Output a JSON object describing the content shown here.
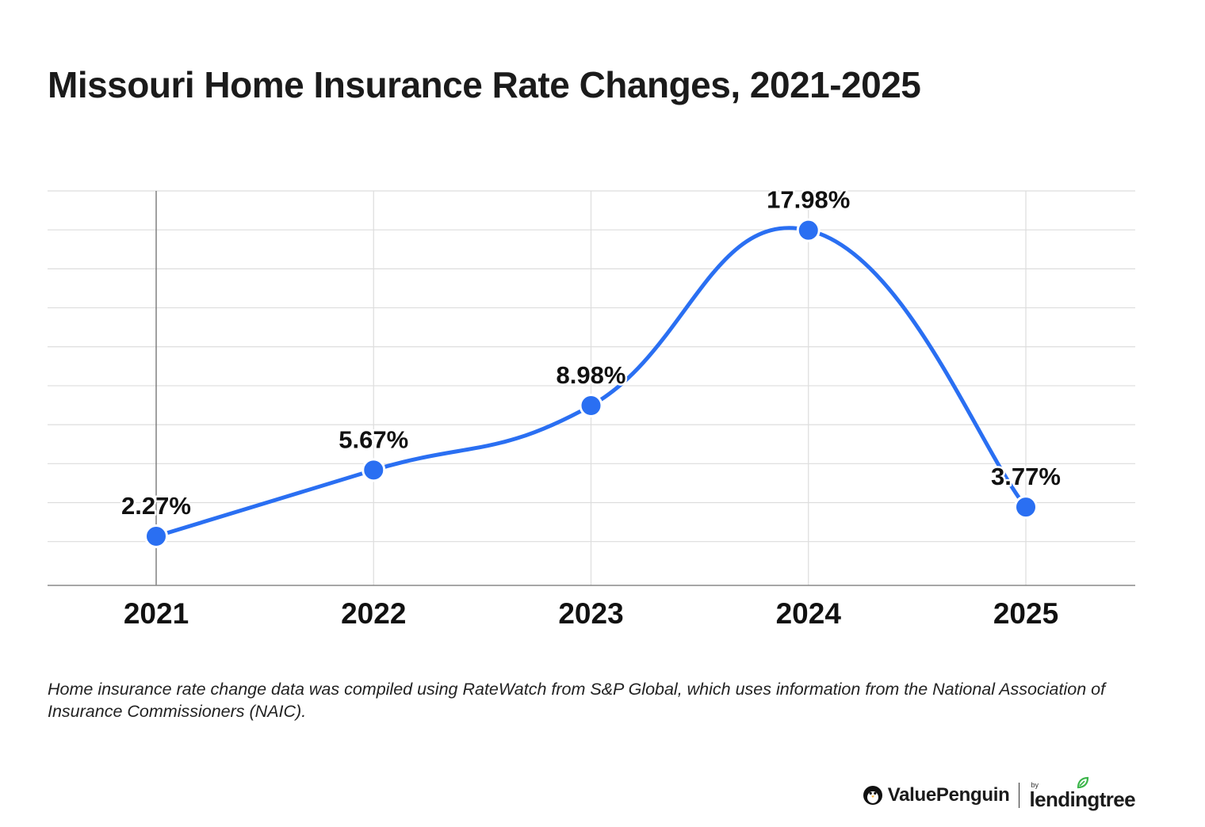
{
  "title": "Missouri Home Insurance Rate Changes, 2021-2025",
  "footnote": "Home insurance rate change data was compiled using RateWatch from S&P Global, which uses information from the National Association of Insurance Commissioners (NAIC).",
  "brand": {
    "valuepenguin": "ValuePenguin",
    "by": "by",
    "lendingtree": "lendingtree"
  },
  "colors": {
    "line": "#2a6ff2",
    "point": "#2a6ff2",
    "grid": "#dddddd",
    "axis": "#888888",
    "text": "#111111",
    "leaf": "#3bb54a"
  },
  "chart_data": {
    "type": "line",
    "title": "Missouri Home Insurance Rate Changes, 2021-2025",
    "xlabel": "",
    "ylabel": "",
    "categories": [
      "2021",
      "2022",
      "2023",
      "2024",
      "2025"
    ],
    "series": [
      {
        "values": [
          2.27,
          5.67,
          8.98,
          17.98,
          3.77
        ],
        "labels": [
          "2.27%",
          "5.67%",
          "8.98%",
          "17.98%",
          "3.77%"
        ]
      }
    ],
    "ylim": [
      -0.25,
      20
    ],
    "y_grid_step": 2,
    "grid": true,
    "smooth": true,
    "legend": "none"
  }
}
